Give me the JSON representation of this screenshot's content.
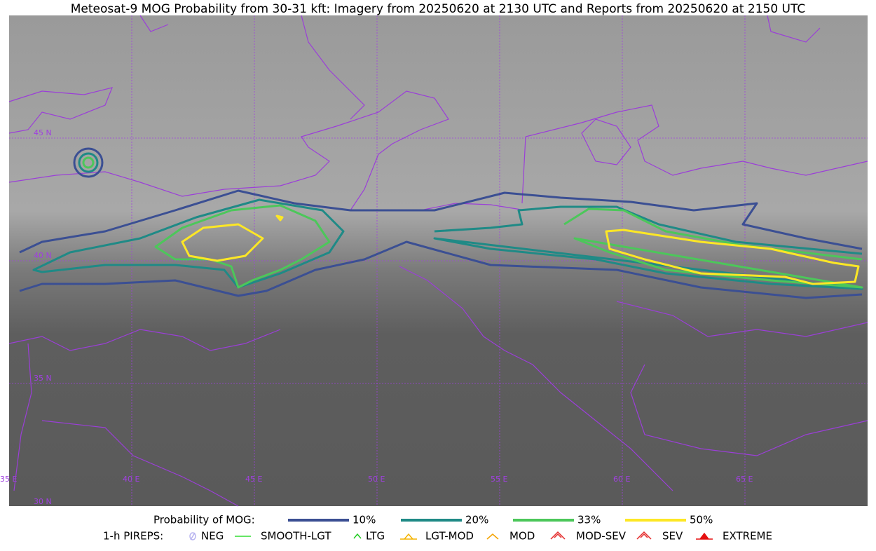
{
  "title": "Meteosat-9 MOG Probability from 30-31 kft: Imagery from 20250620 at 2130 UTC and Reports from 20250620 at 2150 UTC",
  "grid_labels": {
    "lat": [
      "45 N",
      "40 N",
      "35 N",
      "30 N"
    ],
    "lon": [
      "35 E",
      "40 E",
      "45 E",
      "50 E",
      "55 E",
      "60 E",
      "65 E"
    ]
  },
  "legend": {
    "probability": {
      "label": "Probability of MOG:",
      "levels": [
        {
          "label": "10%",
          "color": "#3b4f93"
        },
        {
          "label": "20%",
          "color": "#1f8a86"
        },
        {
          "label": "33%",
          "color": "#4cc75a"
        },
        {
          "label": "50%",
          "color": "#fde725"
        }
      ]
    },
    "pireps": {
      "label": "1-h PIREPS:",
      "items": [
        {
          "label": "NEG",
          "color": "#b7b3f0"
        },
        {
          "label": "SMOOTH-LGT",
          "color": "#33dd33"
        },
        {
          "label": "LTG",
          "color": "#22cc22"
        },
        {
          "label": "LGT-MOD",
          "color": "#f4b400"
        },
        {
          "label": "MOD",
          "color": "#f4a300"
        },
        {
          "label": "MOD-SEV",
          "color": "#e53030"
        },
        {
          "label": "SEV",
          "color": "#e53030"
        },
        {
          "label": "EXTREME",
          "color": "#e51010"
        }
      ]
    }
  }
}
